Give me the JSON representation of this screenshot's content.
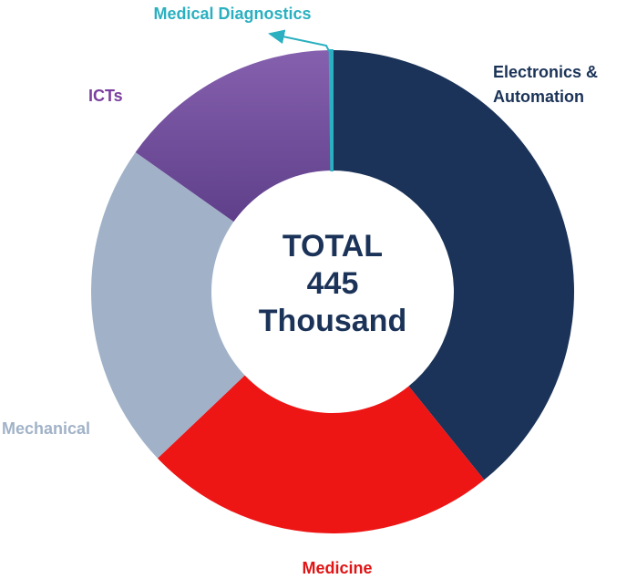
{
  "chart_data": {
    "type": "donut",
    "categories": [
      "Electronics & Automation",
      "Medicine",
      "Mechanical",
      "ICTs",
      "Medical Diagnostics"
    ],
    "values": [
      39.2,
      23.7,
      21.9,
      15.0,
      0.2
    ],
    "colors": [
      "#1b3358",
      "#ee1515",
      "#a1b2c8",
      "#7351a0",
      "#2ab0c0"
    ],
    "label_colors": [
      "#1b3358",
      "#e01414",
      "#a1b2c8",
      "#7a3fa0",
      "#2ab0c0"
    ],
    "center_text": [
      "TOTAL",
      "445",
      "Thousand"
    ]
  }
}
